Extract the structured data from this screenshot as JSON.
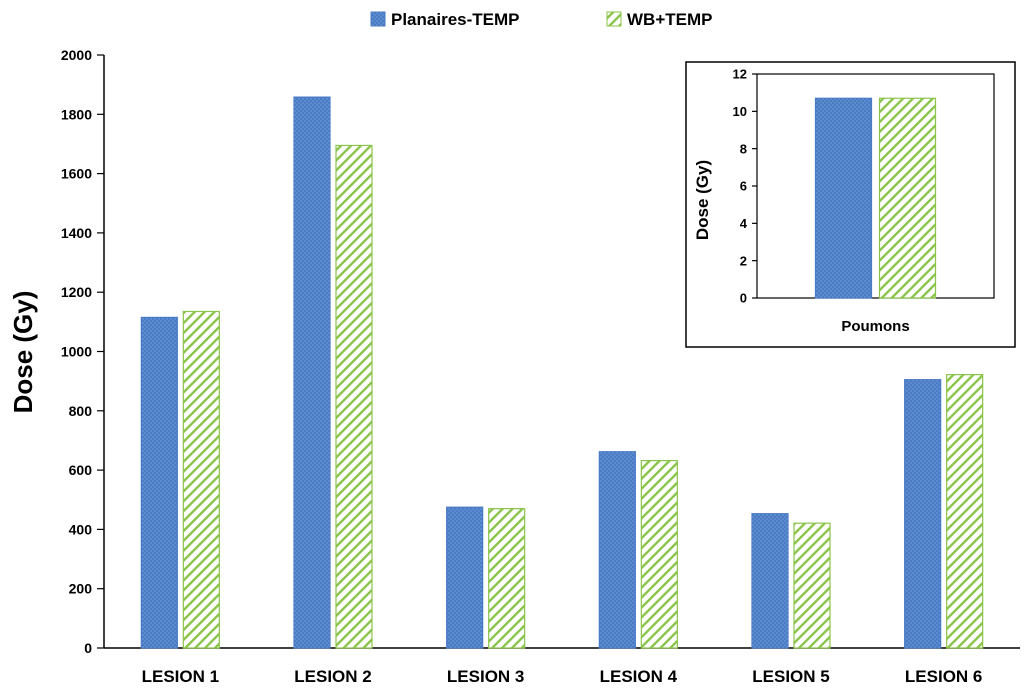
{
  "legend": [
    {
      "label": "Planaires-TEMP",
      "color": "#4a7cc6",
      "pattern": "dotted"
    },
    {
      "label": "WB+TEMP",
      "color": "#8ac44a",
      "pattern": "diagonal-hatch"
    }
  ],
  "chart_data": [
    {
      "type": "bar",
      "title": "",
      "xlabel": "",
      "ylabel": "Dose (Gy)",
      "ylim": [
        0,
        2000
      ],
      "yticks": [
        0,
        200,
        400,
        600,
        800,
        1000,
        1200,
        1400,
        1600,
        1800,
        2000
      ],
      "categories": [
        "LESION 1",
        "LESION 2",
        "LESION 3",
        "LESION 4",
        "LESION 5",
        "LESION 6"
      ],
      "series": [
        {
          "name": "Planaires-TEMP",
          "values": [
            1115,
            1858,
            475,
            662,
            453,
            905
          ]
        },
        {
          "name": "WB+TEMP",
          "values": [
            1135,
            1695,
            470,
            632,
            421,
            922
          ]
        }
      ],
      "grid": false,
      "legend_position": "top-center"
    },
    {
      "type": "bar",
      "title": "",
      "xlabel": "",
      "ylabel": "Dose (Gy)",
      "ylim": [
        0,
        12
      ],
      "yticks": [
        0,
        2,
        4,
        6,
        8,
        10,
        12
      ],
      "categories": [
        "Poumons"
      ],
      "series": [
        {
          "name": "Planaires-TEMP",
          "values": [
            10.7
          ]
        },
        {
          "name": "WB+TEMP",
          "values": [
            10.7
          ]
        }
      ],
      "grid": false,
      "position": "inset"
    }
  ]
}
